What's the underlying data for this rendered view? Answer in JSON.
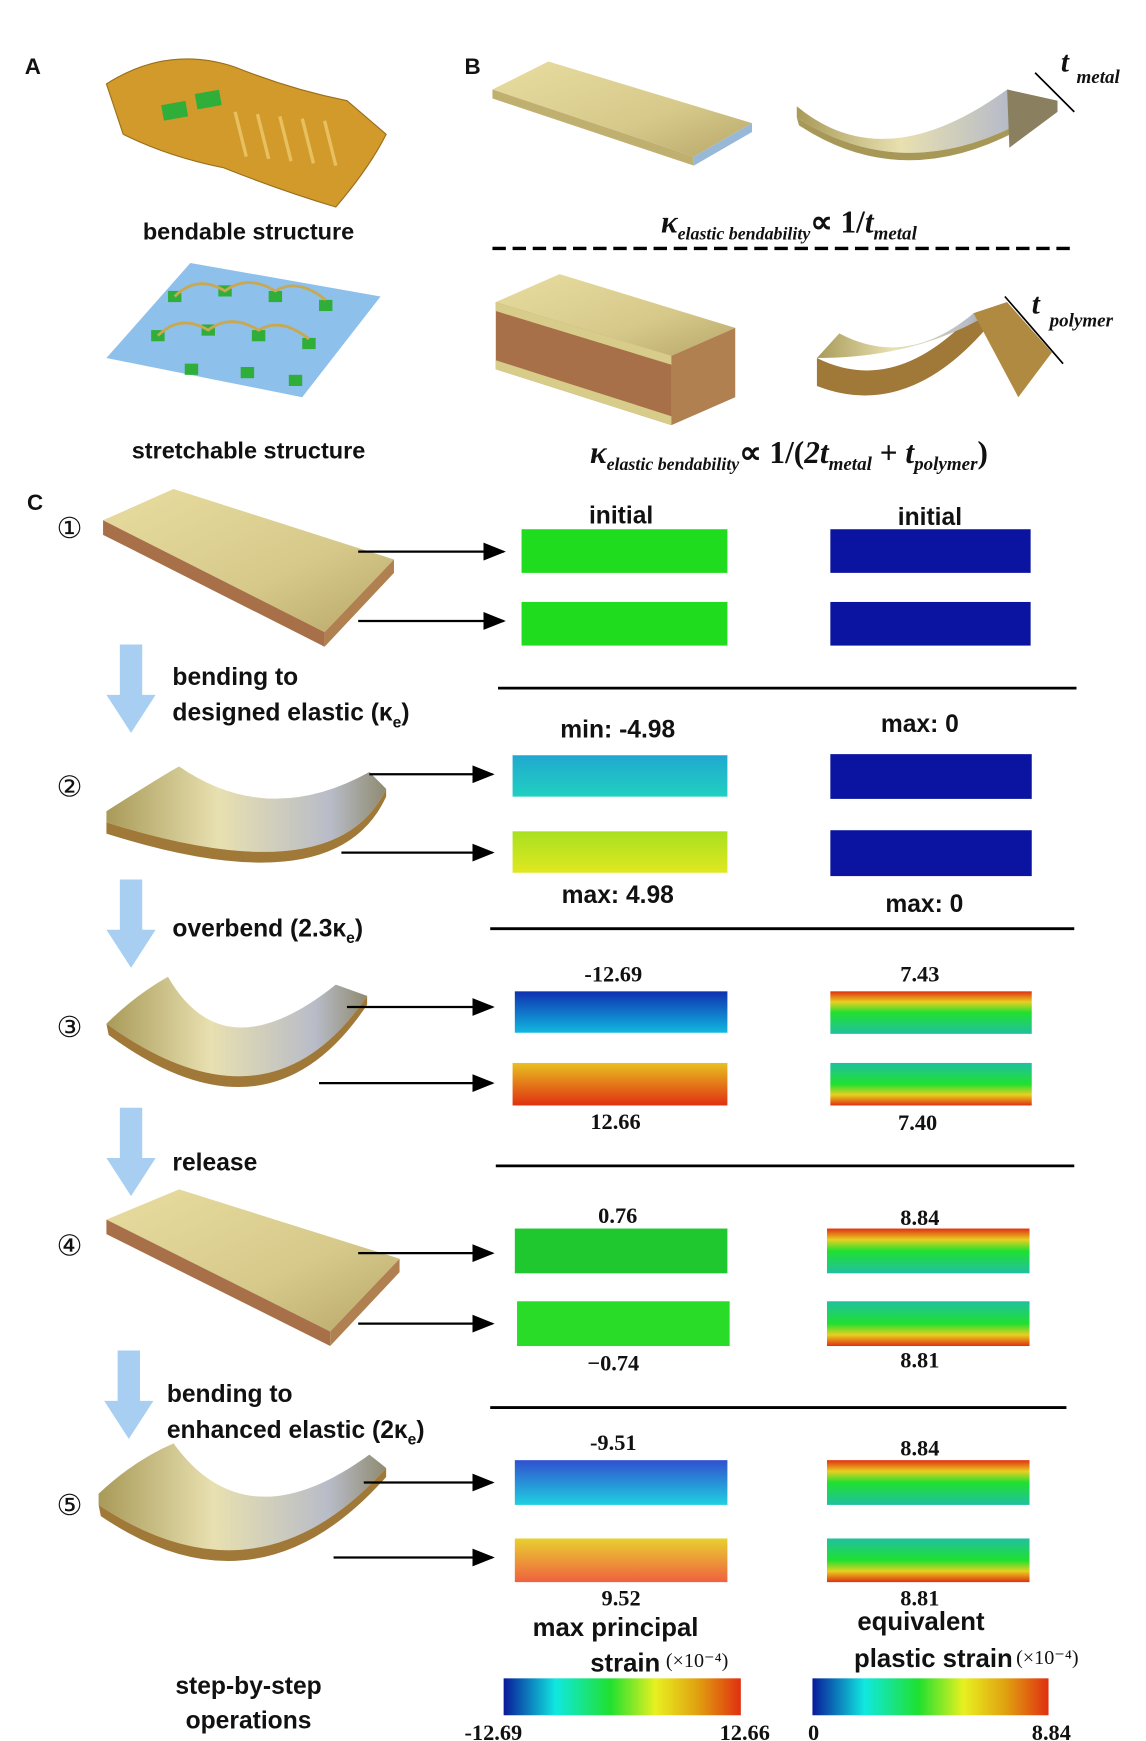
{
  "panels": {
    "a": "A",
    "b": "B",
    "c": "C"
  },
  "panel_a": {
    "bendable": "bendable  structure",
    "stretchable": "stretchable structure"
  },
  "panel_b": {
    "t_metal": "t",
    "t_metal_sub": "metal",
    "t_polymer": "t",
    "t_polymer_sub": "polymer",
    "formula1": {
      "kappa": "κ",
      "sub": "elastic bendability",
      "prop": "∝ 1/",
      "t": "t",
      "tsub": "metal"
    },
    "formula2": {
      "kappa": "κ",
      "sub": "elastic  bendability",
      "prop": "∝ 1/(",
      "t1": "2t",
      "t1sub": "metal",
      "plus": " + ",
      "t2": "t",
      "t2sub": "polymer",
      "close": ")"
    }
  },
  "panel_c": {
    "steps": [
      {
        "marker": "①"
      },
      {
        "marker": "②"
      },
      {
        "marker": "③"
      },
      {
        "marker": "④"
      },
      {
        "marker": "⑤"
      }
    ],
    "operations": [
      {
        "line1": "bending to",
        "line2": "designed  elastic (κ",
        "sub": "e",
        "close": ")"
      },
      {
        "line1": "overbend (2.3κ",
        "sub": "e",
        "close": ")"
      },
      {
        "line1": "release"
      },
      {
        "line1": "bending to",
        "line2": "enhanced elastic (2κ",
        "sub": "e",
        "close": ")"
      }
    ],
    "rows": [
      {
        "left_top": "initial",
        "right_top": "initial",
        "left_bottom": "",
        "right_bottom": ""
      },
      {
        "left_top": "min: -4.98",
        "right_top": "max: 0",
        "left_bottom": "max: 4.98",
        "right_bottom": "max: 0"
      },
      {
        "left_top": "-12.69",
        "right_top": "7.43",
        "left_bottom": "12.66",
        "right_bottom": "7.40"
      },
      {
        "left_top": "0.76",
        "right_top": "8.84",
        "left_bottom": "−0.74",
        "right_bottom": "8.81"
      },
      {
        "left_top": "-9.51",
        "right_top": "8.84",
        "left_bottom": "9.52",
        "right_bottom": "8.81"
      }
    ],
    "footer": {
      "line1": "step-by-step",
      "line2": "operations"
    },
    "legend_left": {
      "title1": "max principal",
      "title2": "strain",
      "unit": "(×10⁻⁴)",
      "min": "-12.69",
      "max": "12.66"
    },
    "legend_right": {
      "title1": "equivalent",
      "title2": "plastic strain",
      "unit": "(×10⁻⁴)",
      "min": "0",
      "max": "8.84"
    }
  },
  "colors": {
    "gold": "#d8c98a",
    "polymer": "#a0703a",
    "arrow_blue": "#a8cff2",
    "green": "#1fdc1f",
    "navy": "#0b14a0"
  }
}
